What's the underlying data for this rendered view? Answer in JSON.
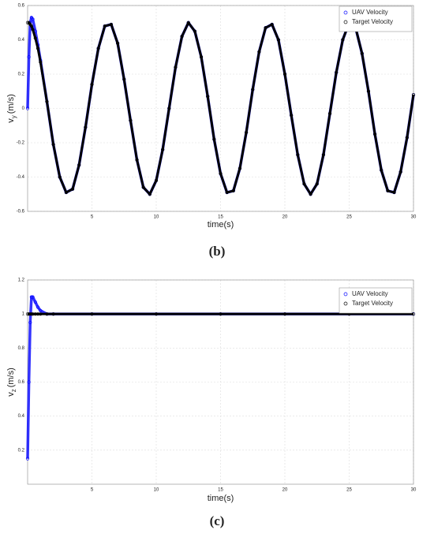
{
  "chart_data": [
    {
      "type": "scatter",
      "caption": "(b)",
      "xlabel": "time(s)",
      "ylabel": "v",
      "ylabel_sub": "y",
      "ylabel_unit": "(m/s)",
      "xlim": [
        0,
        30
      ],
      "xticks": [
        5,
        10,
        15,
        20,
        25,
        30
      ],
      "ylim": [
        -0.6,
        0.6
      ],
      "yticks": [
        -0.6,
        -0.4,
        -0.2,
        0,
        0.2,
        0.4,
        0.6
      ],
      "grid": true,
      "legend": "upper right",
      "x": [
        0,
        0.1,
        0.2,
        0.3,
        0.4,
        0.6,
        0.8,
        1,
        1.5,
        2,
        2.5,
        3,
        3.5,
        4,
        4.5,
        5,
        5.5,
        6,
        6.5,
        7,
        7.5,
        8,
        8.5,
        9,
        9.5,
        10,
        10.5,
        11,
        11.5,
        12,
        12.5,
        13,
        13.5,
        14,
        14.5,
        15,
        15.5,
        16,
        16.5,
        17,
        17.5,
        18,
        18.5,
        19,
        19.5,
        20,
        20.5,
        21,
        21.5,
        22,
        22.5,
        23,
        23.5,
        24,
        24.5,
        25,
        25.5,
        26,
        26.5,
        27,
        27.5,
        28,
        28.5,
        29,
        29.5,
        30
      ],
      "series": [
        {
          "name": "UAV Velocity",
          "color": "#0000ff",
          "values": [
            0.0,
            0.3,
            0.5,
            0.53,
            0.52,
            0.45,
            0.37,
            0.28,
            0.04,
            -0.21,
            -0.4,
            -0.49,
            -0.47,
            -0.33,
            -0.11,
            0.14,
            0.35,
            0.48,
            0.49,
            0.38,
            0.17,
            -0.07,
            -0.3,
            -0.46,
            -0.5,
            -0.42,
            -0.24,
            0.0,
            0.24,
            0.42,
            0.5,
            0.45,
            0.3,
            0.07,
            -0.18,
            -0.38,
            -0.49,
            -0.48,
            -0.35,
            -0.14,
            0.11,
            0.33,
            0.47,
            0.49,
            0.4,
            0.2,
            -0.04,
            -0.27,
            -0.44,
            -0.5,
            -0.44,
            -0.27,
            -0.03,
            0.21,
            0.4,
            0.5,
            0.47,
            0.32,
            0.1,
            -0.15,
            -0.36,
            -0.48,
            -0.49,
            -0.37,
            -0.17,
            0.08
          ]
        },
        {
          "name": "Target Velocity",
          "color": "#000000",
          "values": [
            0.5,
            0.5,
            0.49,
            0.48,
            0.46,
            0.41,
            0.35,
            0.27,
            0.04,
            -0.21,
            -0.4,
            -0.49,
            -0.47,
            -0.33,
            -0.11,
            0.14,
            0.35,
            0.48,
            0.49,
            0.38,
            0.17,
            -0.07,
            -0.3,
            -0.46,
            -0.5,
            -0.42,
            -0.24,
            0.0,
            0.24,
            0.42,
            0.5,
            0.45,
            0.3,
            0.07,
            -0.18,
            -0.38,
            -0.49,
            -0.48,
            -0.35,
            -0.14,
            0.11,
            0.33,
            0.47,
            0.49,
            0.4,
            0.2,
            -0.04,
            -0.27,
            -0.44,
            -0.5,
            -0.44,
            -0.27,
            -0.03,
            0.21,
            0.4,
            0.5,
            0.47,
            0.32,
            0.1,
            -0.15,
            -0.36,
            -0.48,
            -0.49,
            -0.37,
            -0.17,
            0.08
          ]
        }
      ]
    },
    {
      "type": "scatter",
      "caption": "(c)",
      "xlabel": "time(s)",
      "ylabel": "v",
      "ylabel_sub": "z",
      "ylabel_unit": "(m/s)",
      "xlim": [
        0,
        30
      ],
      "xticks": [
        5,
        10,
        15,
        20,
        25,
        30
      ],
      "ylim": [
        0,
        1.2
      ],
      "yticks": [
        0.2,
        0.4,
        0.6,
        0.8,
        1,
        1.2
      ],
      "grid": true,
      "legend": "upper right",
      "x": [
        0,
        0.1,
        0.2,
        0.3,
        0.4,
        0.6,
        0.8,
        1,
        1.5,
        2,
        5,
        10,
        15,
        20,
        25,
        30
      ],
      "series": [
        {
          "name": "UAV Velocity",
          "color": "#0000ff",
          "values": [
            0.15,
            0.6,
            0.95,
            1.1,
            1.1,
            1.07,
            1.04,
            1.02,
            1.0,
            1,
            1,
            1,
            1,
            1,
            1,
            1
          ]
        },
        {
          "name": "Target Velocity",
          "color": "#000000",
          "values": [
            1,
            1,
            1,
            1,
            1,
            1,
            1,
            1,
            1,
            1,
            1,
            1,
            1,
            1,
            1,
            1
          ]
        }
      ]
    }
  ]
}
